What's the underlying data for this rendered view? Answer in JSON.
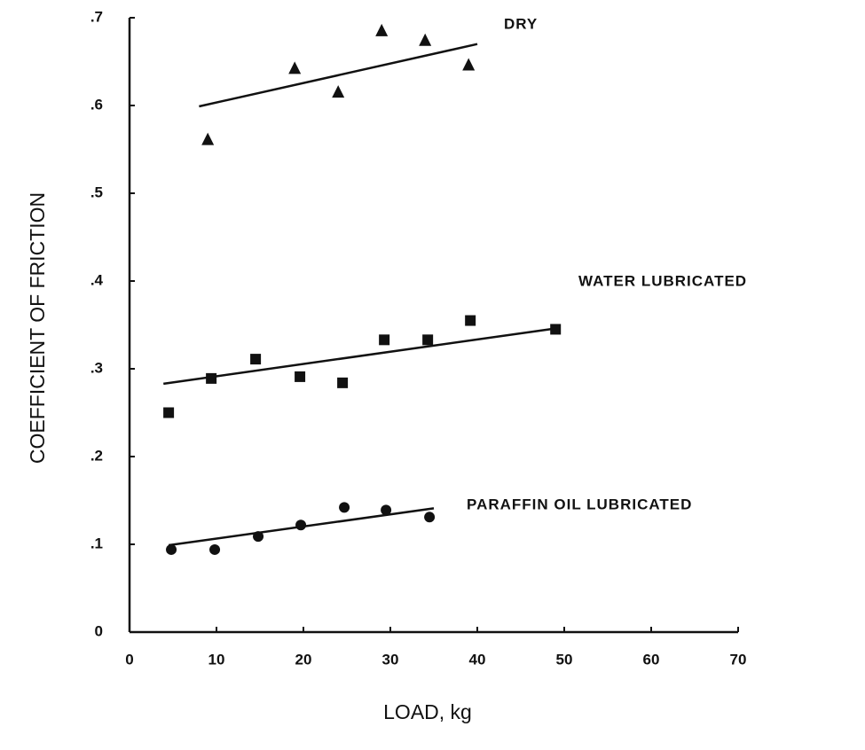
{
  "chart_data": {
    "type": "scatter",
    "xlabel": "LOAD, kg",
    "ylabel": "COEFFICIENT OF FRICTION",
    "xlim": [
      0,
      70
    ],
    "xticks": [
      0,
      10,
      20,
      30,
      40,
      50,
      60,
      70
    ],
    "ylim": [
      0,
      0.7
    ],
    "yticks": [
      0,
      {
        "value": 0.1,
        "label": ".1"
      },
      {
        "value": 0.2,
        "label": ".2"
      },
      {
        "value": 0.3,
        "label": ".3"
      },
      {
        "value": 0.4,
        "label": ".4"
      },
      {
        "value": 0.5,
        "label": ".5"
      },
      {
        "value": 0.6,
        "label": ".6"
      },
      {
        "value": 0.7,
        "label": ".7"
      }
    ],
    "grid": false,
    "series": [
      {
        "name": "DRY",
        "color": "#111111",
        "marker": "triangle",
        "x": [
          9,
          19,
          24,
          29,
          34,
          39
        ],
        "values": [
          0.561,
          0.642,
          0.615,
          0.685,
          0.674,
          0.646
        ],
        "fit": {
          "x": [
            8,
            40
          ],
          "values": [
            0.599,
            0.67
          ]
        }
      },
      {
        "name": "WATER LUBRICATED",
        "color": "#111111",
        "marker": "square",
        "x": [
          4.5,
          9.4,
          14.5,
          19.6,
          24.5,
          29.3,
          34.3,
          39.2,
          49
        ],
        "values": [
          0.25,
          0.289,
          0.311,
          0.291,
          0.284,
          0.333,
          0.333,
          0.355,
          0.345
        ],
        "fit": {
          "x": [
            3.9,
            49
          ],
          "values": [
            0.283,
            0.346
          ]
        }
      },
      {
        "name": "PARAFFIN OIL LUBRICATED",
        "color": "#111111",
        "marker": "circle",
        "x": [
          4.8,
          9.8,
          14.8,
          19.7,
          24.7,
          29.5,
          34.5
        ],
        "values": [
          0.094,
          0.094,
          0.109,
          0.122,
          0.142,
          0.139,
          0.131
        ],
        "fit": {
          "x": [
            4.5,
            35
          ],
          "values": [
            0.099,
            0.141
          ]
        }
      }
    ]
  }
}
